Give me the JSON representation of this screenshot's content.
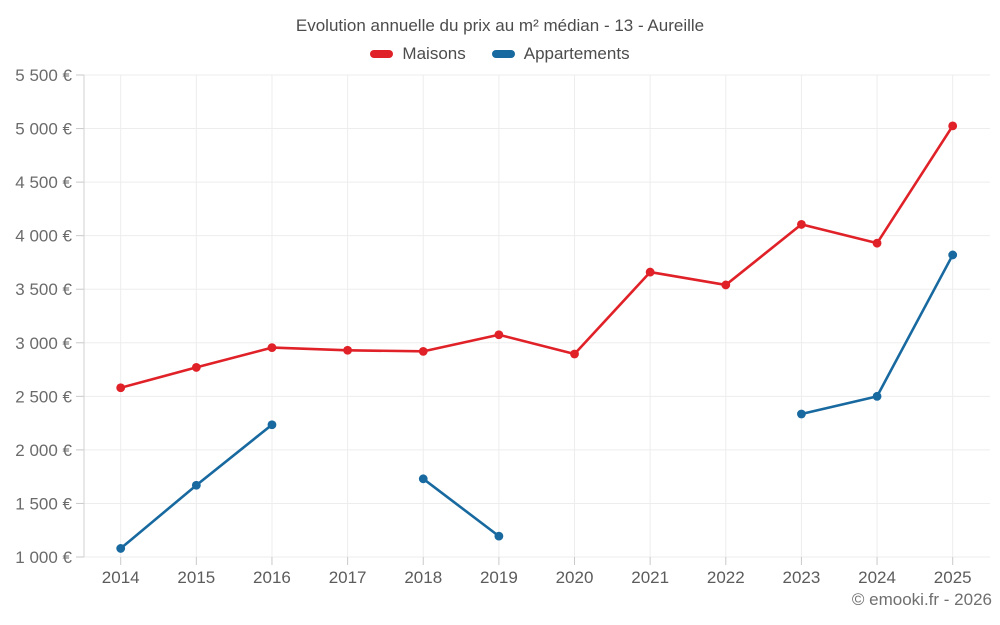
{
  "header": {
    "title": "Evolution annuelle du prix au m² médian - 13 - Aureille"
  },
  "legend": [
    {
      "label": "Maisons",
      "color": "#e02128"
    },
    {
      "label": "Appartements",
      "color": "#17699f"
    }
  ],
  "footer": {
    "copyright": "© emooki.fr - 2026"
  },
  "colors": {
    "maisons": "#e02128",
    "appartements": "#17699f",
    "gridline": "#ededed",
    "axis": "#d2d2d2",
    "tick": "#c9c9c9",
    "y_label": "#6b6b6b",
    "x_label": "#5c5c5c",
    "background": "#ffffff"
  },
  "chart_data": {
    "type": "line",
    "title": "Evolution annuelle du prix au m² médian - 13 - Aureille",
    "xlabel": "",
    "ylabel": "",
    "x": [
      "2014",
      "2015",
      "2016",
      "2017",
      "2018",
      "2019",
      "2020",
      "2021",
      "2022",
      "2023",
      "2024",
      "2025"
    ],
    "series": [
      {
        "name": "Maisons",
        "color": "#e02128",
        "values": [
          2580,
          2770,
          2955,
          2930,
          2920,
          3075,
          2895,
          3660,
          3540,
          4105,
          3930,
          5025
        ]
      },
      {
        "name": "Appartements",
        "color": "#17699f",
        "values": [
          1080,
          1670,
          2235,
          null,
          1730,
          1195,
          null,
          null,
          null,
          2335,
          2500,
          3820
        ]
      }
    ],
    "y_ticks": {
      "values": [
        5500,
        5000,
        4500,
        4000,
        3500,
        3000,
        2500,
        2000,
        1500,
        1000
      ],
      "labels": [
        "5 500 €",
        "5 000 €",
        "4 500 €",
        "4 000 €",
        "3 500 €",
        "3 000 €",
        "2 500 €",
        "2 000 €",
        "1 500 €",
        "1 000 €"
      ]
    },
    "ylim": [
      1000,
      5500
    ],
    "grid": true,
    "legend_position": "top",
    "annotations": [
      "© emooki.fr - 2026"
    ]
  }
}
